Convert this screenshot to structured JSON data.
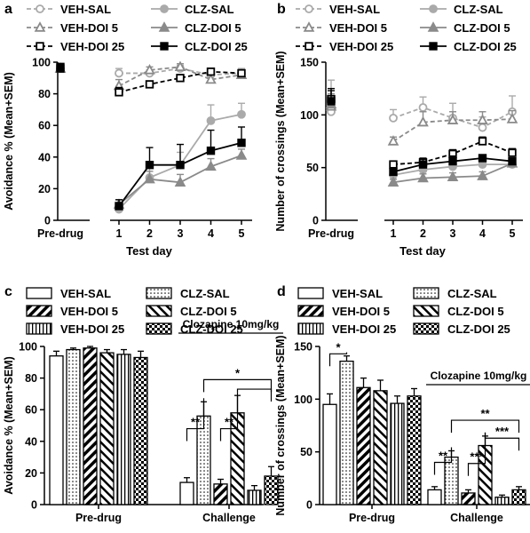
{
  "chart_data": [
    {
      "panel": "a",
      "type": "line",
      "xlabel": "Test day",
      "ylabel": "Avoidance % (Mean+SEM)",
      "ylim": [
        0,
        100
      ],
      "yticks": [
        "0",
        "20",
        "40",
        "60",
        "80",
        "100"
      ],
      "x_tick_labels": [
        "Pre-drug",
        "1",
        "2",
        "3",
        "4",
        "5"
      ],
      "legend_placement": "top",
      "series": [
        {
          "name": "VEH-SAL",
          "style": "veh-sal",
          "y": [
            96,
            93,
            93,
            96,
            92,
            93
          ],
          "err": [
            2,
            3,
            2,
            2,
            2,
            3
          ]
        },
        {
          "name": "CLZ-SAL",
          "style": "clz-sal",
          "y": [
            96,
            7,
            27,
            35,
            63,
            67
          ],
          "err": [
            2,
            3,
            8,
            8,
            10,
            7
          ]
        },
        {
          "name": "VEH-DOI 5",
          "style": "veh-doi5",
          "y": [
            96,
            85,
            95,
            97,
            89,
            92
          ],
          "err": [
            2,
            4,
            2,
            2,
            3,
            3
          ]
        },
        {
          "name": "CLZ-DOI 5",
          "style": "clz-doi5",
          "y": [
            96,
            10,
            26,
            24,
            34,
            41
          ],
          "err": [
            2,
            3,
            5,
            5,
            5,
            4
          ]
        },
        {
          "name": "VEH-DOI 25",
          "style": "veh-doi25",
          "y": [
            96,
            81,
            86,
            90,
            94,
            93
          ],
          "err": [
            2,
            3,
            2,
            2,
            2,
            2
          ]
        },
        {
          "name": "CLZ-DOI 25",
          "style": "clz-doi25",
          "y": [
            97,
            9,
            35,
            35,
            44,
            49
          ],
          "err": [
            2,
            4,
            11,
            13,
            13,
            10
          ]
        }
      ]
    },
    {
      "panel": "b",
      "type": "line",
      "xlabel": "Test day",
      "ylabel": "Number of crossings (Mean+SEM)",
      "ylim": [
        0,
        150
      ],
      "yticks": [
        "0",
        "50",
        "100",
        "150"
      ],
      "x_tick_labels": [
        "Pre-drug",
        "1",
        "2",
        "3",
        "4",
        "5"
      ],
      "legend_placement": "top",
      "series": [
        {
          "name": "VEH-SAL",
          "style": "veh-sal",
          "y": [
            103,
            97,
            107,
            97,
            88,
            103
          ],
          "err": [
            8,
            8,
            10,
            14,
            10,
            15
          ]
        },
        {
          "name": "CLZ-SAL",
          "style": "clz-sal",
          "y": [
            113,
            43,
            48,
            51,
            53,
            53
          ],
          "err": [
            20,
            3,
            4,
            4,
            4,
            3
          ]
        },
        {
          "name": "VEH-DOI 5",
          "style": "veh-doi5",
          "y": [
            108,
            75,
            93,
            95,
            95,
            96
          ],
          "err": [
            8,
            4,
            10,
            8,
            8,
            8
          ]
        },
        {
          "name": "CLZ-DOI 5",
          "style": "clz-doi5",
          "y": [
            110,
            36,
            40,
            41,
            42,
            54
          ],
          "err": [
            10,
            3,
            4,
            4,
            4,
            3
          ]
        },
        {
          "name": "VEH-DOI 25",
          "style": "veh-doi25",
          "y": [
            115,
            53,
            55,
            63,
            75,
            64
          ],
          "err": [
            10,
            3,
            4,
            4,
            4,
            4
          ]
        },
        {
          "name": "CLZ-DOI 25",
          "style": "clz-doi25",
          "y": [
            113,
            46,
            53,
            56,
            59,
            56
          ],
          "err": [
            10,
            4,
            5,
            5,
            3,
            3
          ]
        }
      ]
    },
    {
      "panel": "c",
      "type": "bar",
      "xlabel": "",
      "ylabel": "Avoidance % (Mean+SEM)",
      "ylim": [
        0,
        100
      ],
      "yticks": [
        "0",
        "20",
        "40",
        "60",
        "80",
        "100"
      ],
      "categories": [
        "Pre-drug",
        "Challenge"
      ],
      "legend_placement": "top",
      "annotation": "Clozapine 10mg/kg",
      "series": [
        {
          "name": "VEH-SAL",
          "style": "veh-sal",
          "values": [
            94,
            14
          ],
          "err": [
            3,
            3
          ]
        },
        {
          "name": "CLZ-SAL",
          "style": "clz-sal",
          "values": [
            98,
            56
          ],
          "err": [
            1,
            9
          ]
        },
        {
          "name": "VEH-DOI 5",
          "style": "veh-doi5",
          "values": [
            99,
            13
          ],
          "err": [
            1,
            3
          ]
        },
        {
          "name": "CLZ-DOI 5",
          "style": "clz-doi5",
          "values": [
            96,
            58
          ],
          "err": [
            2,
            11
          ]
        },
        {
          "name": "VEH-DOI 25",
          "style": "veh-doi25",
          "values": [
            95,
            9
          ],
          "err": [
            3,
            3
          ]
        },
        {
          "name": "CLZ-DOI 25",
          "style": "clz-doi25",
          "values": [
            93,
            18
          ],
          "err": [
            4,
            6
          ]
        }
      ],
      "significance": [
        {
          "label": "**",
          "from": 0,
          "to": 1,
          "y": 48
        },
        {
          "label": "**",
          "from": 2,
          "to": 3,
          "y": 48
        },
        {
          "label": "*",
          "from": 1,
          "to": 5,
          "y": 79
        },
        {
          "label": "",
          "from": 3,
          "to": 5,
          "y": 73
        }
      ]
    },
    {
      "panel": "d",
      "type": "bar",
      "xlabel": "",
      "ylabel": "Number of crossings (Mean+SEM)",
      "ylim": [
        0,
        150
      ],
      "yticks": [
        "0",
        "50",
        "100",
        "150"
      ],
      "categories": [
        "Pre-drug",
        "Challenge"
      ],
      "legend_placement": "top",
      "annotation": "Clozapine 10mg/kg",
      "series": [
        {
          "name": "VEH-SAL",
          "style": "veh-sal",
          "values": [
            95,
            14
          ],
          "err": [
            10,
            3
          ]
        },
        {
          "name": "CLZ-SAL",
          "style": "clz-sal",
          "values": [
            136,
            45
          ],
          "err": [
            5,
            6
          ]
        },
        {
          "name": "VEH-DOI 5",
          "style": "veh-doi5",
          "values": [
            111,
            11
          ],
          "err": [
            9,
            3
          ]
        },
        {
          "name": "CLZ-DOI 5",
          "style": "clz-doi5",
          "values": [
            108,
            56
          ],
          "err": [
            10,
            9
          ]
        },
        {
          "name": "VEH-DOI 25",
          "style": "veh-doi25",
          "values": [
            96,
            7
          ],
          "err": [
            7,
            2
          ]
        },
        {
          "name": "CLZ-DOI 25",
          "style": "clz-doi25",
          "values": [
            103,
            14
          ],
          "err": [
            7,
            3
          ]
        }
      ],
      "significance": [
        {
          "label": "*",
          "from": 0,
          "to": 1,
          "y": 143,
          "group": 0
        },
        {
          "label": "**",
          "from": 0,
          "to": 1,
          "y": 40
        },
        {
          "label": "***",
          "from": 2,
          "to": 3,
          "y": 39
        },
        {
          "label": "***",
          "from": 3,
          "to": 5,
          "y": 63
        },
        {
          "label": "**",
          "from": 1,
          "to": 5,
          "y": 80
        }
      ]
    }
  ]
}
